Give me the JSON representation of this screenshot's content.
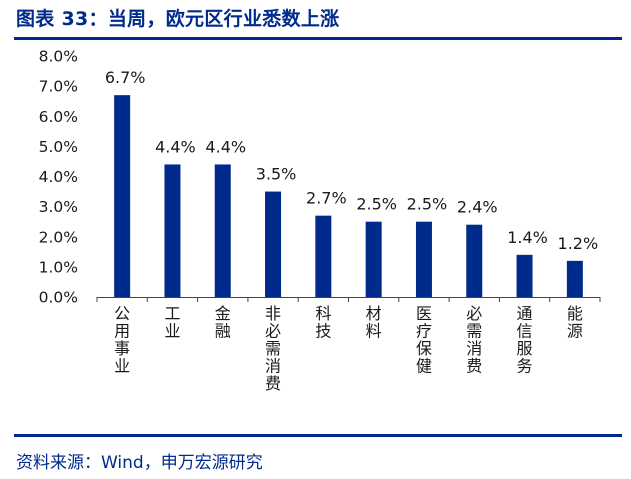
{
  "figure": {
    "title": "图表 33：当周，欧元区行业悉数上涨",
    "source": "资料来源：Wind，申万宏源研究"
  },
  "colors": {
    "bar": "#002b8c",
    "rule": "#002b8c",
    "axis": "#444444"
  },
  "chart_data": {
    "type": "bar",
    "title": "",
    "xlabel": "",
    "ylabel": "",
    "categories": [
      "公用事业",
      "工业",
      "金融",
      "非必需消费",
      "科技",
      "材料",
      "医疗保健",
      "必需消费",
      "通信服务",
      "能源"
    ],
    "values": [
      6.7,
      4.4,
      4.4,
      3.5,
      2.7,
      2.5,
      2.5,
      2.4,
      1.4,
      1.2
    ],
    "data_labels": [
      "6.7%",
      "4.4%",
      "4.4%",
      "3.5%",
      "2.7%",
      "2.5%",
      "2.5%",
      "2.4%",
      "1.4%",
      "1.2%"
    ],
    "ylim": [
      0,
      8
    ],
    "yticks": [
      0,
      1,
      2,
      3,
      4,
      5,
      6,
      7,
      8
    ],
    "ytick_labels": [
      "0.0%",
      "1.0%",
      "2.0%",
      "3.0%",
      "4.0%",
      "5.0%",
      "6.0%",
      "7.0%",
      "8.0%"
    ],
    "grid": false,
    "legend": "none"
  }
}
